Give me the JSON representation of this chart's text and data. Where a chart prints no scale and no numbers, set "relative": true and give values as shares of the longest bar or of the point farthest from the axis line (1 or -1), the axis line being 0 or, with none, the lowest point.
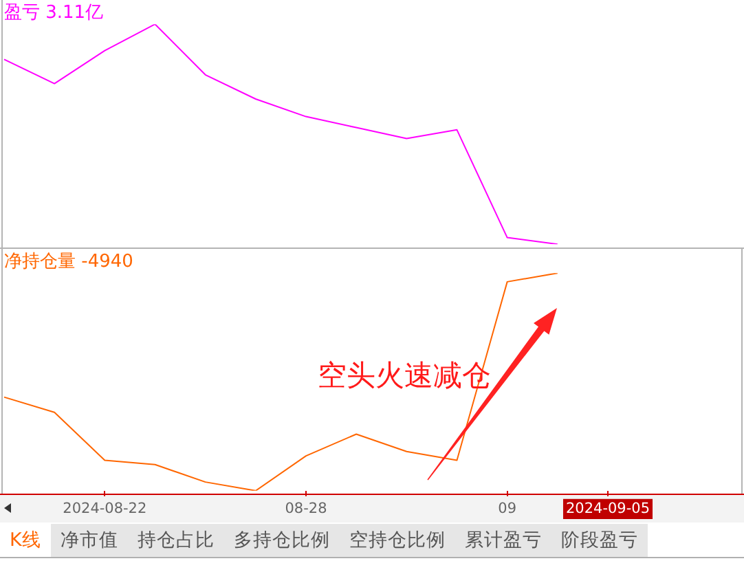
{
  "chart_data": [
    {
      "type": "line",
      "title": "盈亏 3.11亿",
      "categories": [
        null,
        null,
        null,
        null,
        null,
        null,
        null,
        null,
        null,
        null,
        null,
        null,
        null
      ],
      "values": [
        0.84,
        0.73,
        0.88,
        1,
        0.77,
        0.66,
        0.58,
        0.53,
        0.48,
        0.52,
        0.03,
        0,
        null
      ],
      "color": "#ff00ff",
      "relative": true,
      "tick_labels": false
    },
    {
      "type": "line",
      "title": "净持仓量 -4940",
      "categories": [
        null,
        null,
        "2024-08-22",
        null,
        null,
        null,
        "08-28",
        null,
        null,
        null,
        "09",
        null,
        "2024-09-05"
      ],
      "values": [
        0.43,
        0.36,
        0.14,
        0.12,
        0.04,
        0,
        0.16,
        0.26,
        0.18,
        0.14,
        0.96,
        1,
        null
      ],
      "color": "#ff6600",
      "relative": true,
      "tick_labels": "x",
      "annotations": [
        "空头火速减仓"
      ]
    },
    {
      "type": "other",
      "annotations": [
        "K线",
        "净市值",
        "持仓占比",
        "多持仓比例",
        "空持仓比例",
        "累计盈亏",
        "阶段盈亏"
      ]
    }
  ]
}
